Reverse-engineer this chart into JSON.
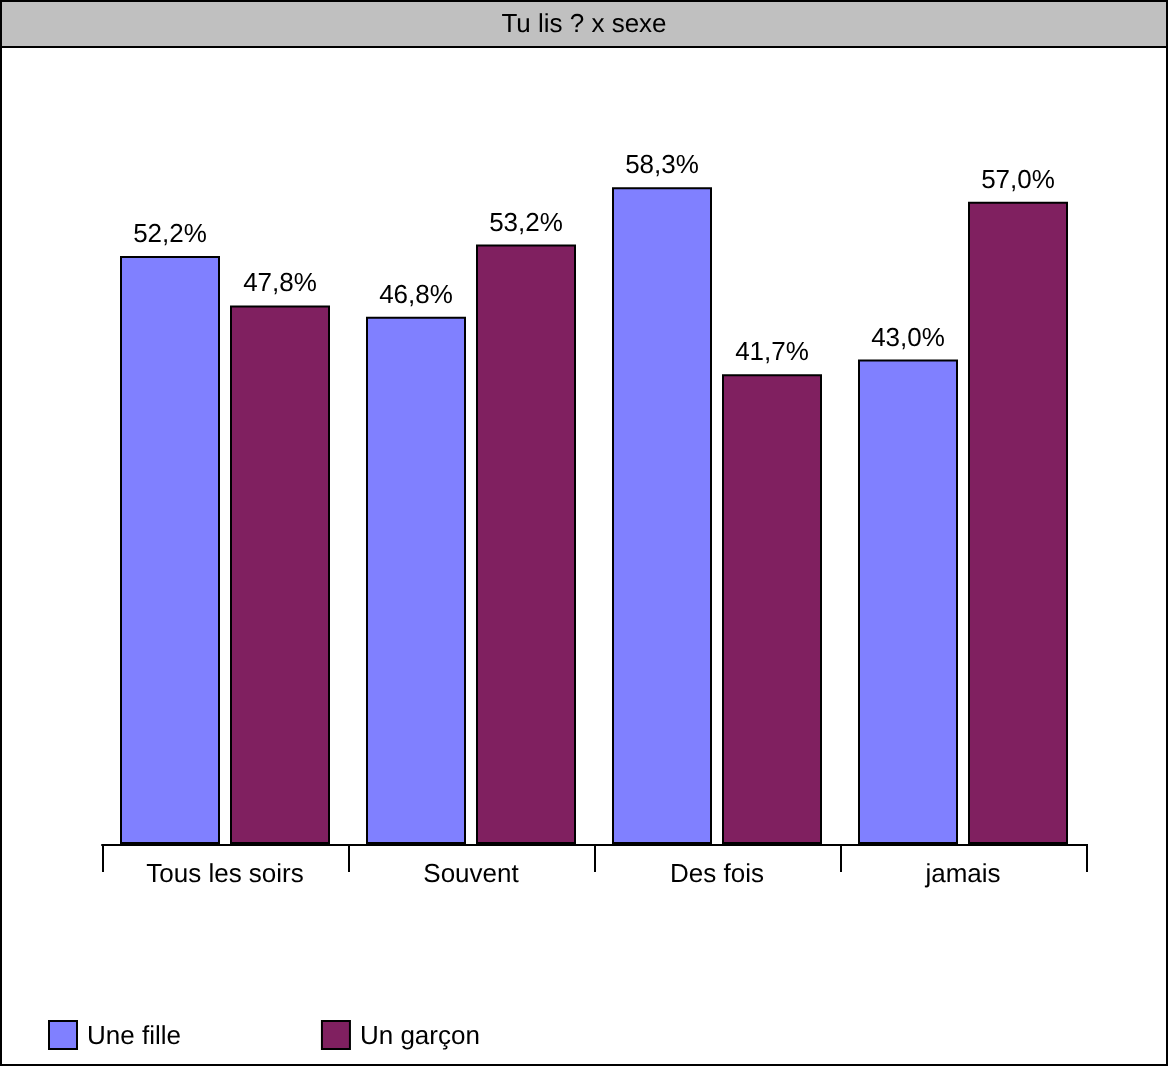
{
  "chart_data": {
    "type": "bar",
    "title": "Tu lis ? x sexe",
    "categories": [
      "Tous les soirs",
      "Souvent",
      "Des fois",
      "jamais"
    ],
    "series": [
      {
        "name": "Une fille",
        "color": "#8080ff",
        "values": [
          52.2,
          46.8,
          58.3,
          43.0
        ],
        "value_labels": [
          "52,2%",
          "46,8%",
          "58,3%",
          "43,0%"
        ]
      },
      {
        "name": "Un garçon",
        "color": "#802060",
        "values": [
          47.8,
          53.2,
          41.7,
          57.0
        ],
        "value_labels": [
          "47,8%",
          "53,2%",
          "41,7%",
          "57,0%"
        ]
      }
    ],
    "legend": "bottom left",
    "grid": false,
    "tick_labels": "x"
  }
}
